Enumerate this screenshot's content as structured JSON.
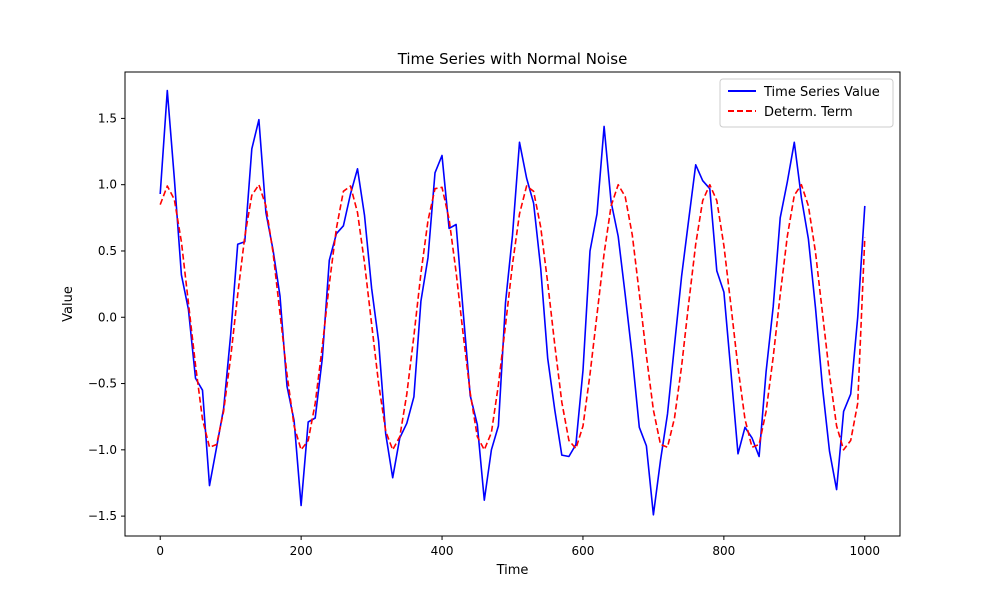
{
  "chart_data": {
    "type": "line",
    "title": "Time Series with Normal Noise",
    "xlabel": "Time",
    "ylabel": "Value",
    "xlim": [
      -50,
      1050
    ],
    "ylim": [
      -1.65,
      1.85
    ],
    "xticks": [
      0,
      200,
      400,
      600,
      800,
      1000
    ],
    "yticks": [
      -1.5,
      -1.0,
      -0.5,
      0.0,
      0.5,
      1.0,
      1.5
    ],
    "xtick_labels": [
      "0",
      "200",
      "400",
      "600",
      "800",
      "1000"
    ],
    "ytick_labels": [
      "−1.5",
      "−1.0",
      "−0.5",
      "0.0",
      "0.5",
      "1.0",
      "1.5"
    ],
    "grid": false,
    "legend_placement": "top-right",
    "series": [
      {
        "name": "Time Series Value",
        "color": "#0000ff",
        "style": "solid",
        "x": [
          0,
          10,
          20,
          30,
          40,
          50,
          60,
          70,
          80,
          90,
          100,
          110,
          120,
          130,
          140,
          150,
          160,
          170,
          180,
          190,
          200,
          210,
          220,
          230,
          240,
          250,
          260,
          270,
          280,
          290,
          300,
          310,
          320,
          330,
          340,
          350,
          360,
          370,
          380,
          390,
          400,
          410,
          420,
          430,
          440,
          450,
          460,
          470,
          480,
          490,
          500,
          510,
          520,
          530,
          540,
          550,
          560,
          570,
          580,
          590,
          600,
          610,
          620,
          630,
          640,
          650,
          660,
          670,
          680,
          690,
          700,
          710,
          720,
          730,
          740,
          750,
          760,
          770,
          780,
          790,
          800,
          810,
          820,
          830,
          840,
          850,
          860,
          870,
          880,
          890,
          900,
          910,
          920,
          930,
          940,
          950,
          960,
          970,
          980,
          990,
          1000
        ],
        "y": [
          0.93,
          1.71,
          1.05,
          0.32,
          0.06,
          -0.46,
          -0.55,
          -1.27,
          -0.98,
          -0.69,
          -0.13,
          0.55,
          0.57,
          1.27,
          1.49,
          0.79,
          0.51,
          0.16,
          -0.52,
          -0.78,
          -1.42,
          -0.79,
          -0.76,
          -0.31,
          0.43,
          0.63,
          0.69,
          0.93,
          1.12,
          0.77,
          0.22,
          -0.18,
          -0.88,
          -1.21,
          -0.91,
          -0.8,
          -0.6,
          0.12,
          0.45,
          1.09,
          1.22,
          0.67,
          0.7,
          0.04,
          -0.59,
          -0.81,
          -1.38,
          -1.0,
          -0.82,
          0.11,
          0.62,
          1.32,
          1.05,
          0.86,
          0.37,
          -0.31,
          -0.7,
          -1.04,
          -1.05,
          -0.96,
          -0.4,
          0.5,
          0.78,
          1.44,
          0.87,
          0.61,
          0.17,
          -0.3,
          -0.83,
          -0.97,
          -1.49,
          -1.08,
          -0.73,
          -0.21,
          0.31,
          0.73,
          1.15,
          1.03,
          0.97,
          0.35,
          0.19,
          -0.41,
          -1.03,
          -0.83,
          -0.91,
          -1.05,
          -0.41,
          0.08,
          0.75,
          1.02,
          1.32,
          0.9,
          0.59,
          0.07,
          -0.53,
          -1.01,
          -1.3,
          -0.71,
          -0.58,
          0.0,
          0.84
        ]
      },
      {
        "name": "Determ. Term",
        "color": "#ff0000",
        "style": "dashed",
        "x": [
          0,
          10,
          20,
          30,
          40,
          50,
          60,
          70,
          80,
          90,
          100,
          110,
          120,
          130,
          140,
          150,
          160,
          170,
          180,
          190,
          200,
          210,
          220,
          230,
          240,
          250,
          260,
          270,
          280,
          290,
          300,
          310,
          320,
          330,
          340,
          350,
          360,
          370,
          380,
          390,
          400,
          410,
          420,
          430,
          440,
          450,
          460,
          470,
          480,
          490,
          500,
          510,
          520,
          530,
          540,
          550,
          560,
          570,
          580,
          590,
          600,
          610,
          620,
          630,
          640,
          650,
          660,
          670,
          680,
          690,
          700,
          710,
          720,
          730,
          740,
          750,
          760,
          770,
          780,
          790,
          800,
          810,
          820,
          830,
          840,
          850,
          860,
          870,
          880,
          890,
          900,
          910,
          920,
          930,
          940,
          950,
          960,
          970,
          980,
          990,
          1000
        ],
        "y": [
          0.85,
          0.99,
          0.89,
          0.57,
          0.11,
          -0.36,
          -0.77,
          -0.98,
          -0.96,
          -0.71,
          -0.3,
          0.17,
          0.61,
          0.92,
          1.0,
          0.84,
          0.49,
          0.03,
          -0.43,
          -0.82,
          -1.0,
          -0.93,
          -0.65,
          -0.22,
          0.25,
          0.67,
          0.95,
          0.99,
          0.79,
          0.41,
          -0.05,
          -0.5,
          -0.86,
          -1.0,
          -0.9,
          -0.58,
          -0.14,
          0.33,
          0.73,
          0.97,
          0.98,
          0.74,
          0.34,
          -0.13,
          -0.57,
          -0.9,
          -1.0,
          -0.87,
          -0.51,
          -0.06,
          0.4,
          0.78,
          0.99,
          0.95,
          0.68,
          0.26,
          -0.21,
          -0.64,
          -0.93,
          -0.99,
          -0.82,
          -0.43,
          0.02,
          0.48,
          0.84,
          1.0,
          0.91,
          0.62,
          0.18,
          -0.29,
          -0.7,
          -0.96,
          -0.98,
          -0.76,
          -0.37,
          0.1,
          0.55,
          0.88,
          1.0,
          0.88,
          0.54,
          0.09,
          -0.38,
          -0.77,
          -0.98,
          -0.96,
          -0.71,
          -0.3,
          0.17,
          0.61,
          0.92,
          1.0,
          0.84,
          0.49,
          0.03,
          -0.43,
          -0.82,
          -1.0,
          -0.93,
          -0.65,
          0.6
        ]
      }
    ]
  }
}
